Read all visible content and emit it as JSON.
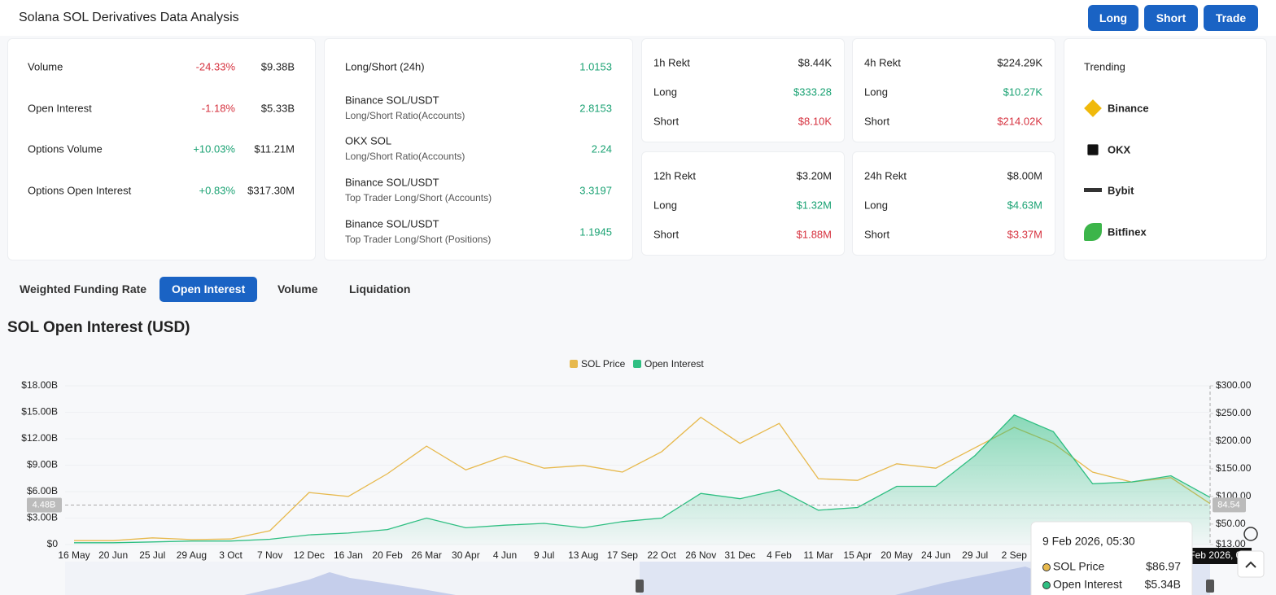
{
  "header": {
    "title": "Solana SOL Derivatives Data Analysis",
    "buttons": [
      "Long",
      "Short",
      "Trade"
    ]
  },
  "market_stats": [
    {
      "label": "Volume",
      "change": "-24.33%",
      "value": "$9.38B"
    },
    {
      "label": "Open Interest",
      "change": "-1.18%",
      "value": "$5.33B"
    },
    {
      "label": "Options Volume",
      "change": "+10.03%",
      "value": "$11.21M"
    },
    {
      "label": "Options Open Interest",
      "change": "+0.83%",
      "value": "$317.30M"
    }
  ],
  "long_short": [
    {
      "label": "Long/Short (24h)",
      "value": "1.0153"
    },
    {
      "label": "Binance SOL/USDT",
      "sublabel": "Long/Short Ratio(Accounts)",
      "value": "2.8153"
    },
    {
      "label": "OKX SOL",
      "sublabel": "Long/Short Ratio(Accounts)",
      "value": "2.24"
    },
    {
      "label": "Binance SOL/USDT",
      "sublabel": "Top Trader Long/Short (Accounts)",
      "value": "3.3197"
    },
    {
      "label": "Binance SOL/USDT",
      "sublabel": "Top Trader Long/Short (Positions)",
      "value": "1.1945"
    }
  ],
  "rekt": [
    {
      "title": "1h Rekt",
      "total": "$8.44K",
      "rows": [
        {
          "label": "Long",
          "value": "$333.28"
        },
        {
          "label": "Short",
          "value": "$8.10K"
        }
      ]
    },
    {
      "title": "4h Rekt",
      "total": "$224.29K",
      "rows": [
        {
          "label": "Long",
          "value": "$10.27K"
        },
        {
          "label": "Short",
          "value": "$214.02K"
        }
      ]
    },
    {
      "title": "12h Rekt",
      "total": "$3.20M",
      "rows": [
        {
          "label": "Long",
          "value": "$1.32M"
        },
        {
          "label": "Short",
          "value": "$1.88M"
        }
      ]
    },
    {
      "title": "24h Rekt",
      "total": "$8.00M",
      "rows": [
        {
          "label": "Long",
          "value": "$4.63M"
        },
        {
          "label": "Short",
          "value": "$3.37M"
        }
      ]
    }
  ],
  "trending": {
    "title": "Trending",
    "exchanges": [
      "Binance",
      "OKX",
      "Bybit",
      "Bitfinex"
    ]
  },
  "tabs": {
    "items": [
      "Weighted Funding Rate",
      "Open Interest",
      "Volume",
      "Liquidation"
    ],
    "active": 1
  },
  "section_title": "SOL Open Interest (USD)",
  "chart_data": {
    "type": "line",
    "categories": [
      "16 May",
      "20 Jun",
      "25 Jul",
      "29 Aug",
      "3 Oct",
      "7 Nov",
      "12 Dec",
      "16 Jan",
      "20 Feb",
      "26 Mar",
      "30 Apr",
      "4 Jun",
      "9 Jul",
      "13 Aug",
      "17 Sep",
      "22 Oct",
      "26 Nov",
      "31 Dec",
      "4 Feb",
      "11 Mar",
      "15 Apr",
      "20 May",
      "24 Jun",
      "29 Jul",
      "2 Sep",
      null,
      null,
      null,
      null,
      null
    ],
    "series": [
      {
        "name": "SOL Price",
        "color": "#e7b94d",
        "axis": "y2",
        "values": [
          20,
          20,
          25,
          22,
          23,
          38,
          107,
          100,
          141,
          191,
          148,
          173,
          151,
          156,
          144,
          181,
          243,
          196,
          232,
          132,
          129,
          159,
          151,
          188,
          225,
          196,
          144,
          126,
          134,
          86.97
        ]
      },
      {
        "name": "Open Interest",
        "color": "#2fbf82",
        "area": true,
        "values": [
          0.2,
          0.2,
          0.3,
          0.4,
          0.4,
          0.6,
          1.1,
          1.3,
          1.7,
          3.0,
          1.9,
          2.2,
          2.4,
          1.9,
          2.6,
          3.0,
          5.8,
          5.2,
          6.2,
          3.9,
          4.2,
          6.6,
          6.6,
          10.1,
          14.7,
          12.8,
          6.9,
          7.1,
          7.8,
          5.34
        ]
      }
    ],
    "ylim": [
      0,
      18
    ],
    "yticks": [
      {
        "value": 0,
        "label": "$0"
      },
      {
        "value": 3,
        "label": "$3.00B"
      },
      {
        "value": 6,
        "label": "$6.00B"
      },
      {
        "value": 9,
        "label": "$9.00B"
      },
      {
        "value": 12,
        "label": "$12.00B"
      },
      {
        "value": 15,
        "label": "$15.00B"
      },
      {
        "value": 18,
        "label": "$18.00B"
      }
    ],
    "y2lim": [
      13,
      300
    ],
    "y2ticks": [
      {
        "value": 13,
        "label": "$13.00"
      },
      {
        "value": 50,
        "label": "$50.00"
      },
      {
        "value": 100,
        "label": "$100.00"
      },
      {
        "value": 150,
        "label": "$150.00"
      },
      {
        "value": 200,
        "label": "$200.00"
      },
      {
        "value": 250,
        "label": "$250.00"
      },
      {
        "value": 300,
        "label": "$300.00"
      }
    ],
    "grid": true,
    "legend": "top",
    "crosshair": {
      "y": {
        "value": 4.48,
        "label": "4.48B"
      },
      "y2": 84.54
    },
    "tooltip": {
      "title": "9 Feb 2026, 05:30",
      "rows": [
        "$86.97",
        "$5.34B"
      ]
    }
  }
}
